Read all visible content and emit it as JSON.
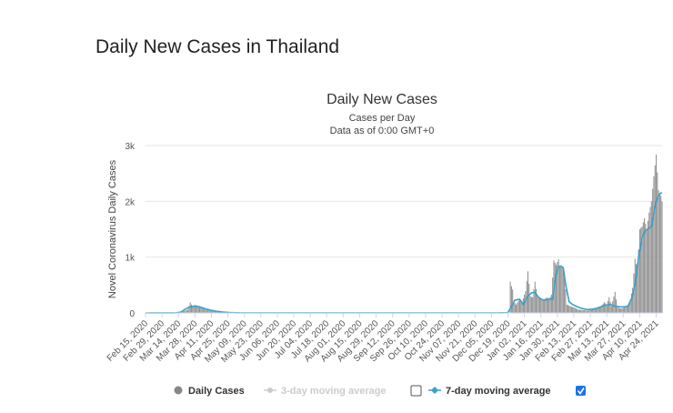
{
  "page": {
    "title": "Daily New Cases in Thailand"
  },
  "legend": {
    "daily": "Daily Cases",
    "ma3": "3-day moving average",
    "ma7": "7-day moving average",
    "ma3_checked": false,
    "ma7_checked": true
  },
  "chart_data": {
    "type": "bar",
    "title": "Daily New Cases",
    "subtitle": "Cases per Day",
    "subtitle2": "Data as of 0:00 GMT+0",
    "xlabel": "",
    "ylabel": "Novel Coronavirus Daily Cases",
    "ylim": [
      0,
      3000
    ],
    "yticks": [
      {
        "value": 0,
        "label": "0"
      },
      {
        "value": 1000,
        "label": "1k"
      },
      {
        "value": 2000,
        "label": "2k"
      },
      {
        "value": 3000,
        "label": "3k"
      }
    ],
    "xticks": [
      {
        "day": 0,
        "label": "Feb 15, 2020"
      },
      {
        "day": 14,
        "label": "Feb 29, 2020"
      },
      {
        "day": 28,
        "label": "Mar 14, 2020"
      },
      {
        "day": 42,
        "label": "Mar 28, 2020"
      },
      {
        "day": 56,
        "label": "Apr 11, 2020"
      },
      {
        "day": 70,
        "label": "Apr 25, 2020"
      },
      {
        "day": 84,
        "label": "May 09, 2020"
      },
      {
        "day": 98,
        "label": "May 23, 2020"
      },
      {
        "day": 112,
        "label": "Jun 06, 2020"
      },
      {
        "day": 126,
        "label": "Jun 20, 2020"
      },
      {
        "day": 140,
        "label": "Jul 04, 2020"
      },
      {
        "day": 154,
        "label": "Jul 18, 2020"
      },
      {
        "day": 168,
        "label": "Aug 01, 2020"
      },
      {
        "day": 182,
        "label": "Aug 15, 2020"
      },
      {
        "day": 196,
        "label": "Aug 29, 2020"
      },
      {
        "day": 210,
        "label": "Sep 12, 2020"
      },
      {
        "day": 224,
        "label": "Sep 26, 2020"
      },
      {
        "day": 238,
        "label": "Oct 10, 2020"
      },
      {
        "day": 252,
        "label": "Oct 24, 2020"
      },
      {
        "day": 266,
        "label": "Nov 07, 2020"
      },
      {
        "day": 280,
        "label": "Nov 21, 2020"
      },
      {
        "day": 294,
        "label": "Dec 05, 2020"
      },
      {
        "day": 308,
        "label": "Dec 19, 2020"
      },
      {
        "day": 322,
        "label": "Jan 02, 2021"
      },
      {
        "day": 336,
        "label": "Jan 16, 2021"
      },
      {
        "day": 350,
        "label": "Jan 30, 2021"
      },
      {
        "day": 364,
        "label": "Feb 13, 2021"
      },
      {
        "day": 378,
        "label": "Feb 27, 2021"
      },
      {
        "day": 392,
        "label": "Mar 13, 2021"
      },
      {
        "day": 406,
        "label": "Mar 27, 2021"
      },
      {
        "day": 420,
        "label": "Apr 10, 2021"
      },
      {
        "day": 434,
        "label": "Apr 24, 2021"
      }
    ],
    "x_range_days": [
      0,
      439
    ],
    "daily_cases_anchors": [
      [
        0,
        0
      ],
      [
        26,
        3
      ],
      [
        30,
        15
      ],
      [
        33,
        35
      ],
      [
        36,
        60
      ],
      [
        38,
        190
      ],
      [
        40,
        110
      ],
      [
        42,
        140
      ],
      [
        45,
        120
      ],
      [
        48,
        100
      ],
      [
        51,
        60
      ],
      [
        54,
        40
      ],
      [
        58,
        30
      ],
      [
        62,
        20
      ],
      [
        67,
        10
      ],
      [
        72,
        5
      ],
      [
        80,
        3
      ],
      [
        150,
        3
      ],
      [
        300,
        2
      ],
      [
        309,
        5
      ],
      [
        310,
        560
      ],
      [
        311,
        480
      ],
      [
        312,
        420
      ],
      [
        313,
        200
      ],
      [
        315,
        150
      ],
      [
        318,
        250
      ],
      [
        320,
        200
      ],
      [
        323,
        390
      ],
      [
        325,
        745
      ],
      [
        327,
        300
      ],
      [
        329,
        280
      ],
      [
        331,
        560
      ],
      [
        333,
        300
      ],
      [
        336,
        250
      ],
      [
        338,
        230
      ],
      [
        341,
        280
      ],
      [
        343,
        250
      ],
      [
        345,
        330
      ],
      [
        347,
        940
      ],
      [
        349,
        860
      ],
      [
        351,
        960
      ],
      [
        352,
        820
      ],
      [
        354,
        830
      ],
      [
        356,
        700
      ],
      [
        358,
        150
      ],
      [
        361,
        120
      ],
      [
        364,
        100
      ],
      [
        368,
        60
      ],
      [
        372,
        50
      ],
      [
        376,
        40
      ],
      [
        380,
        70
      ],
      [
        384,
        90
      ],
      [
        387,
        120
      ],
      [
        390,
        190
      ],
      [
        392,
        150
      ],
      [
        394,
        280
      ],
      [
        396,
        120
      ],
      [
        399,
        380
      ],
      [
        401,
        100
      ],
      [
        404,
        80
      ],
      [
        407,
        100
      ],
      [
        410,
        130
      ],
      [
        412,
        250
      ],
      [
        414,
        450
      ],
      [
        416,
        970
      ],
      [
        418,
        780
      ],
      [
        420,
        1500
      ],
      [
        422,
        1550
      ],
      [
        424,
        1700
      ],
      [
        426,
        1500
      ],
      [
        428,
        1800
      ],
      [
        430,
        2000
      ],
      [
        432,
        2450
      ],
      [
        434,
        2840
      ],
      [
        436,
        2200
      ],
      [
        438,
        2100
      ],
      [
        439,
        2000
      ]
    ],
    "ma7_anchors": [
      [
        0,
        0
      ],
      [
        26,
        2
      ],
      [
        30,
        15
      ],
      [
        34,
        70
      ],
      [
        38,
        110
      ],
      [
        42,
        125
      ],
      [
        46,
        110
      ],
      [
        50,
        80
      ],
      [
        55,
        50
      ],
      [
        60,
        30
      ],
      [
        66,
        15
      ],
      [
        72,
        6
      ],
      [
        80,
        2
      ],
      [
        300,
        2
      ],
      [
        308,
        5
      ],
      [
        311,
        120
      ],
      [
        314,
        230
      ],
      [
        318,
        245
      ],
      [
        321,
        150
      ],
      [
        325,
        300
      ],
      [
        328,
        360
      ],
      [
        331,
        370
      ],
      [
        334,
        280
      ],
      [
        337,
        240
      ],
      [
        340,
        230
      ],
      [
        343,
        250
      ],
      [
        346,
        250
      ],
      [
        349,
        700
      ],
      [
        351,
        830
      ],
      [
        353,
        840
      ],
      [
        355,
        810
      ],
      [
        357,
        520
      ],
      [
        360,
        200
      ],
      [
        363,
        150
      ],
      [
        367,
        110
      ],
      [
        371,
        80
      ],
      [
        375,
        60
      ],
      [
        379,
        65
      ],
      [
        383,
        80
      ],
      [
        387,
        110
      ],
      [
        391,
        140
      ],
      [
        395,
        150
      ],
      [
        399,
        120
      ],
      [
        403,
        110
      ],
      [
        407,
        110
      ],
      [
        410,
        120
      ],
      [
        413,
        250
      ],
      [
        416,
        500
      ],
      [
        419,
        1000
      ],
      [
        422,
        1350
      ],
      [
        425,
        1480
      ],
      [
        428,
        1520
      ],
      [
        430,
        1550
      ],
      [
        432,
        1800
      ],
      [
        434,
        2000
      ],
      [
        436,
        2100
      ],
      [
        438,
        2150
      ],
      [
        439,
        2150
      ]
    ]
  }
}
